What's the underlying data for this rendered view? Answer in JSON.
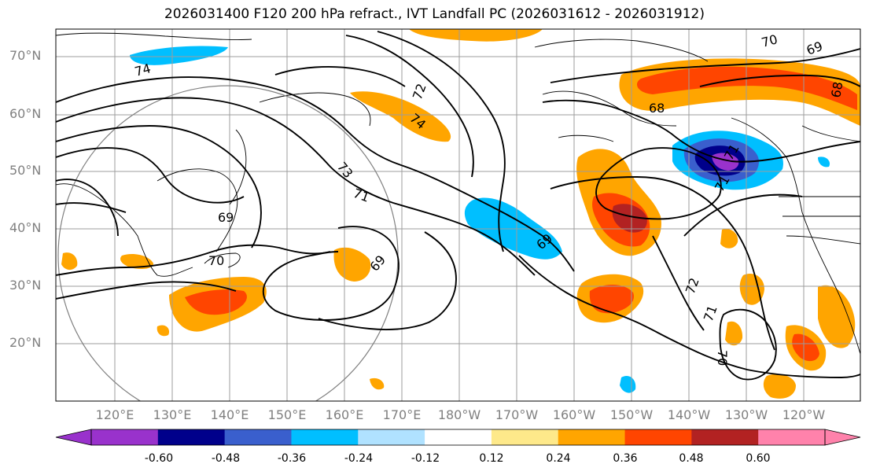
{
  "title": "2026031400 F120 200 hPa refract., IVT Landfall PC (2026031612 - 2026031912)",
  "lat_labels": [
    "70°N",
    "60°N",
    "50°N",
    "40°N",
    "30°N",
    "20°N"
  ],
  "lon_labels": [
    "120°E",
    "130°E",
    "140°E",
    "150°E",
    "160°E",
    "170°E",
    "180°W",
    "170°W",
    "160°W",
    "150°W",
    "140°W",
    "130°W",
    "120°W"
  ],
  "contour_labels": [
    "74",
    "72",
    "74",
    "73",
    "71",
    "69",
    "70",
    "69",
    "69",
    "68",
    "70",
    "69",
    "68",
    "71",
    "72",
    "71",
    "70",
    "71"
  ],
  "colorbar": {
    "labels": [
      "-0.60",
      "-0.48",
      "-0.36",
      "-0.24",
      "-0.12",
      "0.12",
      "0.24",
      "0.36",
      "0.48",
      "0.60"
    ],
    "colors": [
      "#9932cc",
      "#00008b",
      "#3a5fcd",
      "#00bfff",
      "#b0e2ff",
      "#ffffff",
      "#fee98a",
      "#ffa500",
      "#ff4500",
      "#b22222",
      "#ff82ab"
    ],
    "under_color": "#9932cc",
    "over_color": "#ff82ab"
  }
}
